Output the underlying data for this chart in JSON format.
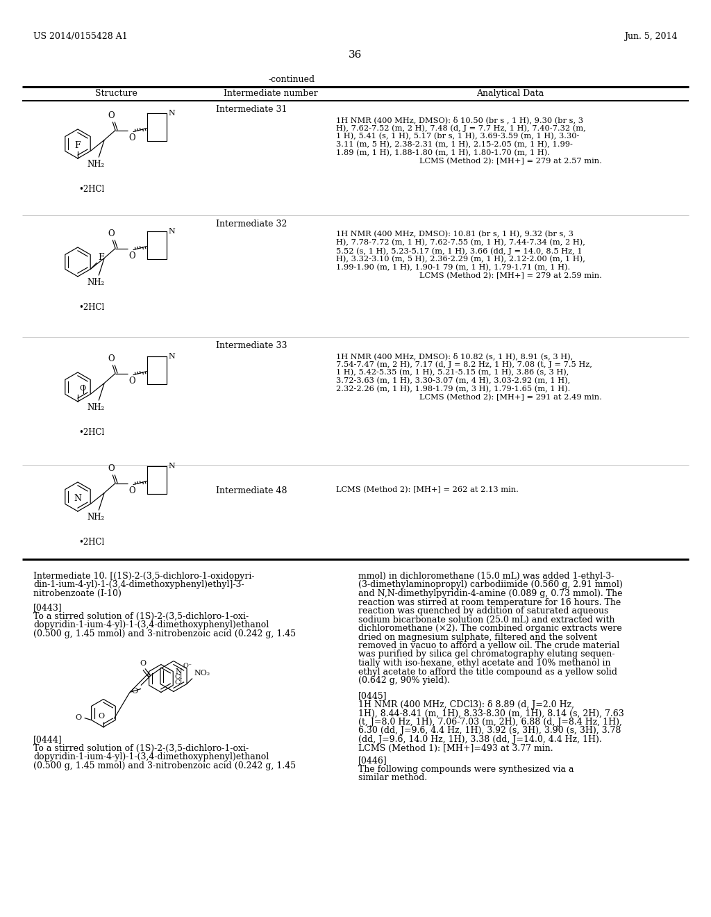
{
  "page_left": "US 2014/0155428 A1",
  "page_right": "Jun. 5, 2014",
  "page_num": "36",
  "continued": "-continued",
  "col_headers": [
    "Structure",
    "Intermediate number",
    "Analytical Data"
  ],
  "row1_intermediate": "Intermediate 31",
  "row1_analytical": [
    "1H NMR (400 MHz, DMSO): δ 10.50 (br s , 1 H), 9.30 (br s, 3",
    "H), 7.62-7.52 (m, 2 H), 7.48 (d, J = 7.7 Hz, 1 H), 7.40-7.32 (m,",
    "1 H), 5.41 (s, 1 H), 5.17 (br s, 1 H), 3.69-3.59 (m, 1 H), 3.30-",
    "3.11 (m, 5 H), 2.38-2.31 (m, 1 H), 2.15-2.05 (m, 1 H), 1.99-",
    "1.89 (m, 1 H), 1.88-1.80 (m, 1 H), 1.80-1.70 (m, 1 H).",
    "LCMS (Method 2): [MH+] = 279 at 2.57 min."
  ],
  "row2_intermediate": "Intermediate 32",
  "row2_analytical": [
    "1H NMR (400 MHz, DMSO): 10.81 (br s, 1 H), 9.32 (br s, 3",
    "H), 7.78-7.72 (m, 1 H), 7.62-7.55 (m, 1 H), 7.44-7.34 (m, 2 H),",
    "5.52 (s, 1 H), 5.23-5.17 (m, 1 H), 3.66 (dd, J = 14.0, 8.5 Hz, 1",
    "H), 3.32-3.10 (m, 5 H), 2.36-2.29 (m, 1 H), 2.12-2.00 (m, 1 H),",
    "1.99-1.90 (m, 1 H), 1.90-1 79 (m, 1 H), 1.79-1.71 (m, 1 H).",
    "LCMS (Method 2): [MH+] = 279 at 2.59 min."
  ],
  "row3_intermediate": "Intermediate 33",
  "row3_analytical": [
    "1H NMR (400 MHz, DMSO): δ 10.82 (s, 1 H), 8.91 (s, 3 H),",
    "7.54-7.47 (m, 2 H), 7.17 (d, J = 8.2 Hz, 1 H), 7.08 (t, J = 7.5 Hz,",
    "1 H), 5.42-5.35 (m, 1 H), 5.21-5.15 (m, 1 H), 3.86 (s, 3 H),",
    "3.72-3.63 (m, 1 H), 3.30-3.07 (m, 4 H), 3.03-2.92 (m, 1 H),",
    "2.32-2.26 (m, 1 H), 1.98-1.79 (m, 3 H), 1.79-1.65 (m, 1 H).",
    "LCMS (Method 2): [MH+] = 291 at 2.49 min."
  ],
  "row4_intermediate": "Intermediate 48",
  "row4_analytical": "LCMS (Method 2): [MH+] = 262 at 2.13 min.",
  "int10_line1": "Intermediate 10. [(1S)-2-(3,5-dichloro-1-oxidopyri-",
  "int10_line2": "din-1-ium-4-yl)-1-(3,4-dimethoxyphenyl)ethyl]-3-",
  "int10_line3": "nitrobenzoate (I-10)",
  "p443_label": "[0443]",
  "p443_lines": [
    "To a stirred solution of (1S)-2-(3,5-dichloro-1-oxi-",
    "dopyridin-1-ium-4-yl)-1-(3,4-dimethoxyphenyl)ethanol",
    "(0.500 g, 1.45 mmol) and 3-nitrobenzoic acid (0.242 g, 1.45"
  ],
  "p443_right_lines": [
    "mmol) in dichloromethane (15.0 mL) was added 1-ethyl-3-",
    "(3-dimethylaminopropyl) carbodiimide (0.560 g, 2.91 mmol)",
    "and N,N-dimethylpyridin-4-amine (0.089 g, 0.73 mmol). The",
    "reaction was stirred at room temperature for 16 hours. The",
    "reaction was quenched by addition of saturated aqueous",
    "sodium bicarbonate solution (25.0 mL) and extracted with",
    "dichloromethane (×2). The combined organic extracts were",
    "dried on magnesium sulphate, filtered and the solvent",
    "removed in vacuo to afford a yellow oil. The crude material",
    "was purified by silica gel chromatography eluting sequen-",
    "tially with iso-hexane, ethyl acetate and 10% methanol in",
    "ethyl acetate to afford the title compound as a yellow solid",
    "(0.642 g, 90% yield)."
  ],
  "p444_label": "[0444]",
  "p444_lines": [
    "To a stirred solution of (1S)-2-(3,5-dichloro-1-oxi-",
    "dopyridin-1-ium-4-yl)-1-(3,4-dimethoxyphenyl)ethanol",
    "(0.500 g, 1.45 mmol) and 3-nitrobenzoic acid (0.242 g, 1.45"
  ],
  "p445_label": "[0445]",
  "p445_lines": [
    "1H NMR (400 MHz, CDCl3): δ 8.89 (d, J=2.0 Hz,",
    "1H), 8.44-8.41 (m, 1H), 8.33-8.30 (m, 1H), 8.14 (s, 2H), 7.63",
    "(t, J=8.0 Hz, 1H), 7.06-7.03 (m, 2H), 6.88 (d, J=8.4 Hz, 1H),",
    "6.30 (dd, J=9.6, 4.4 Hz, 1H), 3.92 (s, 3H), 3.90 (s, 3H), 3.78",
    "(dd, J=9.6, 14.0 Hz, 1H), 3.38 (dd, J=14.0, 4.4 Hz, 1H).",
    "LCMS (Method 1): [MH+]=493 at 3.77 min."
  ],
  "p446_label": "[0446]",
  "p446_lines": [
    "The following compounds were synthesized via a",
    "similar method."
  ],
  "bg": "#ffffff",
  "black": "#000000"
}
